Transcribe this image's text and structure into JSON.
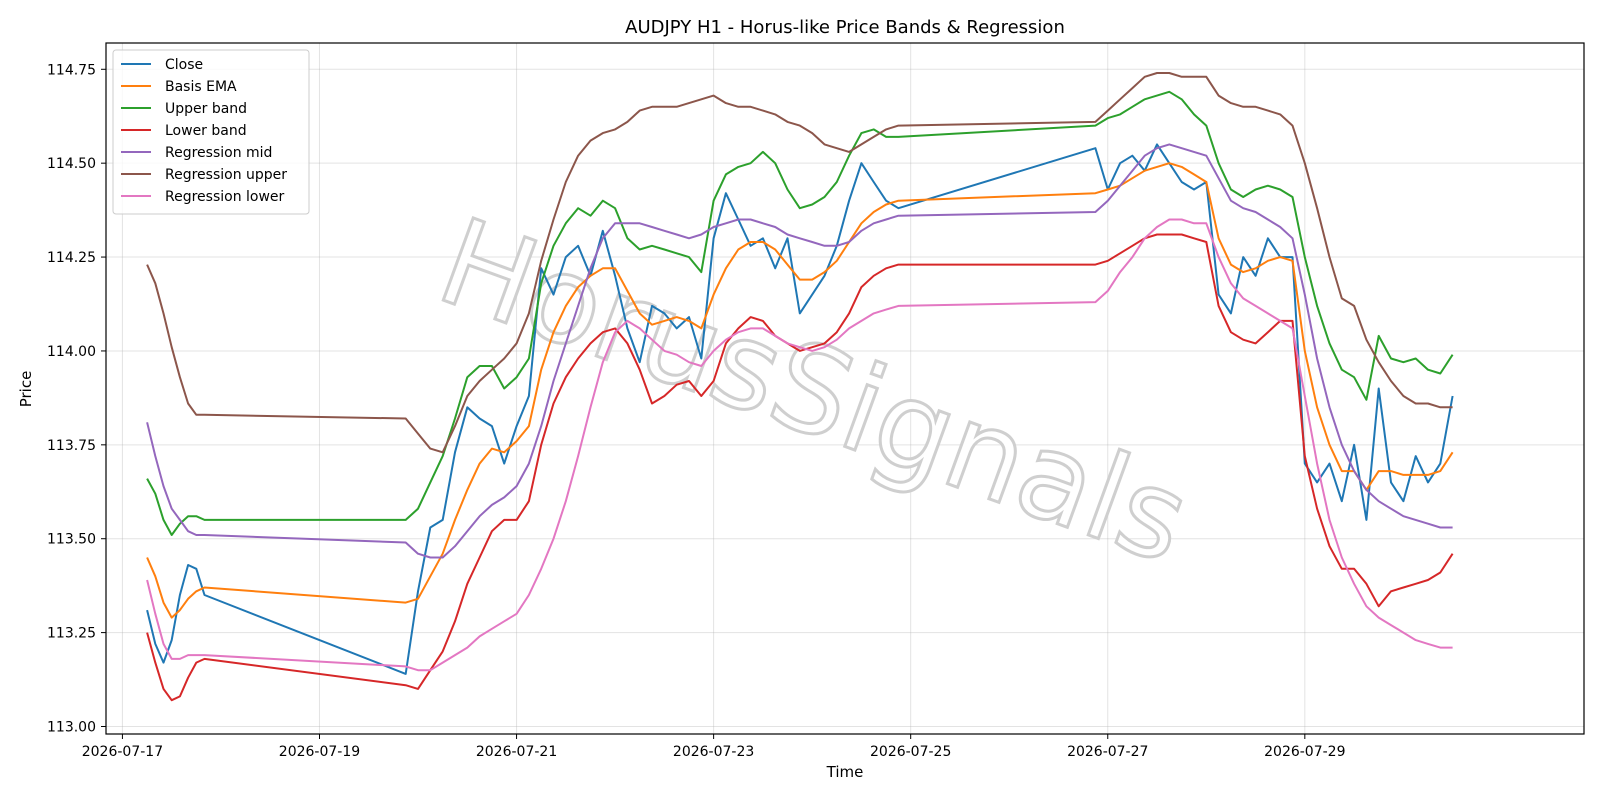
{
  "chart_data": {
    "type": "line",
    "title": "AUDJPY H1 - Horus-like Price Bands & Regression",
    "xlabel": "Time",
    "ylabel": "Price",
    "watermark": "HorusSignals",
    "grid": true,
    "legend_position": "top-left",
    "xlim": [
      "2026-07-16T20:00",
      "2026-07-31T20:00"
    ],
    "ylim": [
      112.98,
      114.82
    ],
    "x_ticks": [
      "2026-07-17",
      "2026-07-19",
      "2026-07-21",
      "2026-07-23",
      "2026-07-25",
      "2026-07-27",
      "2026-07-29"
    ],
    "y_ticks": [
      "113.00",
      "113.25",
      "113.50",
      "113.75",
      "114.00",
      "114.25",
      "114.50",
      "114.75"
    ],
    "x": [
      "2026-07-17T06:00",
      "2026-07-17T08:00",
      "2026-07-17T10:00",
      "2026-07-17T12:00",
      "2026-07-17T14:00",
      "2026-07-17T16:00",
      "2026-07-17T18:00",
      "2026-07-17T20:00",
      "2026-07-19T21:00",
      "2026-07-20T00:00",
      "2026-07-20T03:00",
      "2026-07-20T06:00",
      "2026-07-20T09:00",
      "2026-07-20T12:00",
      "2026-07-20T15:00",
      "2026-07-20T18:00",
      "2026-07-20T21:00",
      "2026-07-21T00:00",
      "2026-07-21T03:00",
      "2026-07-21T06:00",
      "2026-07-21T09:00",
      "2026-07-21T12:00",
      "2026-07-21T15:00",
      "2026-07-21T18:00",
      "2026-07-21T21:00",
      "2026-07-22T00:00",
      "2026-07-22T03:00",
      "2026-07-22T06:00",
      "2026-07-22T09:00",
      "2026-07-22T12:00",
      "2026-07-22T15:00",
      "2026-07-22T18:00",
      "2026-07-22T21:00",
      "2026-07-23T00:00",
      "2026-07-23T03:00",
      "2026-07-23T06:00",
      "2026-07-23T09:00",
      "2026-07-23T12:00",
      "2026-07-23T15:00",
      "2026-07-23T18:00",
      "2026-07-23T21:00",
      "2026-07-24T00:00",
      "2026-07-24T03:00",
      "2026-07-24T06:00",
      "2026-07-24T09:00",
      "2026-07-24T12:00",
      "2026-07-24T15:00",
      "2026-07-24T18:00",
      "2026-07-24T21:00",
      "2026-07-26T21:00",
      "2026-07-27T00:00",
      "2026-07-27T03:00",
      "2026-07-27T06:00",
      "2026-07-27T09:00",
      "2026-07-27T12:00",
      "2026-07-27T15:00",
      "2026-07-27T18:00",
      "2026-07-27T21:00",
      "2026-07-28T00:00",
      "2026-07-28T03:00",
      "2026-07-28T06:00",
      "2026-07-28T09:00",
      "2026-07-28T12:00",
      "2026-07-28T15:00",
      "2026-07-28T18:00",
      "2026-07-28T21:00",
      "2026-07-29T00:00",
      "2026-07-29T03:00",
      "2026-07-29T06:00",
      "2026-07-29T09:00",
      "2026-07-29T12:00",
      "2026-07-29T15:00",
      "2026-07-29T18:00",
      "2026-07-29T21:00",
      "2026-07-30T00:00",
      "2026-07-30T03:00",
      "2026-07-30T06:00",
      "2026-07-30T09:00",
      "2026-07-30T12:00"
    ],
    "series": [
      {
        "name": "Close",
        "color": "#1f77b4",
        "values": [
          113.31,
          113.22,
          113.17,
          113.23,
          113.35,
          113.43,
          113.42,
          113.35,
          113.14,
          113.36,
          113.53,
          113.55,
          113.73,
          113.85,
          113.82,
          113.8,
          113.7,
          113.8,
          113.88,
          114.22,
          114.15,
          114.25,
          114.28,
          114.2,
          114.32,
          114.2,
          114.06,
          113.97,
          114.12,
          114.1,
          114.06,
          114.09,
          113.98,
          114.3,
          114.42,
          114.35,
          114.28,
          114.3,
          114.22,
          114.3,
          114.1,
          114.15,
          114.2,
          114.28,
          114.4,
          114.5,
          114.45,
          114.4,
          114.38,
          114.54,
          114.43,
          114.5,
          114.52,
          114.48,
          114.55,
          114.5,
          114.45,
          114.43,
          114.45,
          114.15,
          114.1,
          114.25,
          114.2,
          114.3,
          114.25,
          114.25,
          113.7,
          113.65,
          113.7,
          113.6,
          113.75,
          113.55,
          113.9,
          113.65,
          113.6,
          113.72,
          113.65,
          113.7,
          113.88
        ]
      },
      {
        "name": "Basis EMA",
        "color": "#ff7f0e",
        "values": [
          113.45,
          113.4,
          113.33,
          113.29,
          113.31,
          113.34,
          113.36,
          113.37,
          113.33,
          113.34,
          113.4,
          113.46,
          113.55,
          113.63,
          113.7,
          113.74,
          113.73,
          113.76,
          113.8,
          113.95,
          114.05,
          114.12,
          114.17,
          114.2,
          114.22,
          114.22,
          114.16,
          114.1,
          114.07,
          114.08,
          114.09,
          114.08,
          114.06,
          114.15,
          114.22,
          114.27,
          114.29,
          114.29,
          114.27,
          114.23,
          114.19,
          114.19,
          114.21,
          114.24,
          114.29,
          114.34,
          114.37,
          114.39,
          114.4,
          114.42,
          114.43,
          114.44,
          114.46,
          114.48,
          114.49,
          114.5,
          114.49,
          114.47,
          114.45,
          114.3,
          114.23,
          114.21,
          114.22,
          114.24,
          114.25,
          114.24,
          114.0,
          113.85,
          113.75,
          113.68,
          113.68,
          113.63,
          113.68,
          113.68,
          113.67,
          113.67,
          113.67,
          113.68,
          113.73
        ]
      },
      {
        "name": "Upper band",
        "color": "#2ca02c",
        "values": [
          113.66,
          113.62,
          113.55,
          113.51,
          113.54,
          113.56,
          113.56,
          113.55,
          113.55,
          113.58,
          113.65,
          113.72,
          113.82,
          113.93,
          113.96,
          113.96,
          113.9,
          113.93,
          113.98,
          114.18,
          114.28,
          114.34,
          114.38,
          114.36,
          114.4,
          114.38,
          114.3,
          114.27,
          114.28,
          114.27,
          114.26,
          114.25,
          114.21,
          114.4,
          114.47,
          114.49,
          114.5,
          114.53,
          114.5,
          114.43,
          114.38,
          114.39,
          114.41,
          114.45,
          114.52,
          114.58,
          114.59,
          114.57,
          114.57,
          114.6,
          114.62,
          114.63,
          114.65,
          114.67,
          114.68,
          114.69,
          114.67,
          114.63,
          114.6,
          114.5,
          114.43,
          114.41,
          114.43,
          114.44,
          114.43,
          114.41,
          114.25,
          114.12,
          114.02,
          113.95,
          113.93,
          113.87,
          114.04,
          113.98,
          113.97,
          113.98,
          113.95,
          113.94,
          113.99
        ]
      },
      {
        "name": "Lower band",
        "color": "#d62728",
        "values": [
          113.25,
          113.17,
          113.1,
          113.07,
          113.08,
          113.13,
          113.17,
          113.18,
          113.11,
          113.1,
          113.15,
          113.2,
          113.28,
          113.38,
          113.45,
          113.52,
          113.55,
          113.55,
          113.6,
          113.75,
          113.86,
          113.93,
          113.98,
          114.02,
          114.05,
          114.06,
          114.02,
          113.95,
          113.86,
          113.88,
          113.91,
          113.92,
          113.88,
          113.92,
          114.02,
          114.06,
          114.09,
          114.08,
          114.04,
          114.02,
          114.0,
          114.01,
          114.02,
          114.05,
          114.1,
          114.17,
          114.2,
          114.22,
          114.23,
          114.23,
          114.24,
          114.26,
          114.28,
          114.3,
          114.31,
          114.31,
          114.31,
          114.3,
          114.29,
          114.12,
          114.05,
          114.03,
          114.02,
          114.05,
          114.08,
          114.08,
          113.72,
          113.58,
          113.48,
          113.42,
          113.42,
          113.38,
          113.32,
          113.36,
          113.37,
          113.38,
          113.39,
          113.41,
          113.46
        ]
      },
      {
        "name": "Regression mid",
        "color": "#9467bd",
        "values": [
          113.81,
          113.72,
          113.64,
          113.58,
          113.55,
          113.52,
          113.51,
          113.51,
          113.49,
          113.46,
          113.45,
          113.45,
          113.48,
          113.52,
          113.56,
          113.59,
          113.61,
          113.64,
          113.7,
          113.8,
          113.92,
          114.02,
          114.12,
          114.22,
          114.3,
          114.34,
          114.34,
          114.34,
          114.33,
          114.32,
          114.31,
          114.3,
          114.31,
          114.33,
          114.34,
          114.35,
          114.35,
          114.34,
          114.33,
          114.31,
          114.3,
          114.29,
          114.28,
          114.28,
          114.29,
          114.32,
          114.34,
          114.35,
          114.36,
          114.37,
          114.4,
          114.44,
          114.48,
          114.52,
          114.54,
          114.55,
          114.54,
          114.53,
          114.52,
          114.46,
          114.4,
          114.38,
          114.37,
          114.35,
          114.33,
          114.3,
          114.15,
          113.98,
          113.85,
          113.75,
          113.68,
          113.63,
          113.6,
          113.58,
          113.56,
          113.55,
          113.54,
          113.53,
          113.53
        ]
      },
      {
        "name": "Regression upper",
        "color": "#8c564b",
        "values": [
          114.23,
          114.18,
          114.1,
          114.01,
          113.93,
          113.86,
          113.83,
          113.83,
          113.82,
          113.78,
          113.74,
          113.73,
          113.8,
          113.88,
          113.92,
          113.95,
          113.98,
          114.02,
          114.1,
          114.24,
          114.35,
          114.45,
          114.52,
          114.56,
          114.58,
          114.59,
          114.61,
          114.64,
          114.65,
          114.65,
          114.65,
          114.66,
          114.67,
          114.68,
          114.66,
          114.65,
          114.65,
          114.64,
          114.63,
          114.61,
          114.6,
          114.58,
          114.55,
          114.54,
          114.53,
          114.55,
          114.57,
          114.59,
          114.6,
          114.61,
          114.64,
          114.67,
          114.7,
          114.73,
          114.74,
          114.74,
          114.73,
          114.73,
          114.73,
          114.68,
          114.66,
          114.65,
          114.65,
          114.64,
          114.63,
          114.6,
          114.5,
          114.38,
          114.25,
          114.14,
          114.12,
          114.03,
          113.97,
          113.92,
          113.88,
          113.86,
          113.86,
          113.85,
          113.85
        ]
      },
      {
        "name": "Regression lower",
        "color": "#e377c2",
        "values": [
          113.39,
          113.3,
          113.22,
          113.18,
          113.18,
          113.19,
          113.19,
          113.19,
          113.16,
          113.15,
          113.15,
          113.17,
          113.19,
          113.21,
          113.24,
          113.26,
          113.28,
          113.3,
          113.35,
          113.42,
          113.5,
          113.6,
          113.72,
          113.85,
          113.97,
          114.05,
          114.08,
          114.06,
          114.03,
          114.0,
          113.99,
          113.97,
          113.96,
          114.0,
          114.03,
          114.05,
          114.06,
          114.06,
          114.04,
          114.02,
          114.01,
          114.0,
          114.01,
          114.03,
          114.06,
          114.08,
          114.1,
          114.11,
          114.12,
          114.13,
          114.16,
          114.21,
          114.25,
          114.3,
          114.33,
          114.35,
          114.35,
          114.34,
          114.34,
          114.25,
          114.18,
          114.14,
          114.12,
          114.1,
          114.08,
          114.06,
          113.88,
          113.7,
          113.55,
          113.45,
          113.38,
          113.32,
          113.29,
          113.27,
          113.25,
          113.23,
          113.22,
          113.21,
          113.21
        ]
      }
    ]
  }
}
